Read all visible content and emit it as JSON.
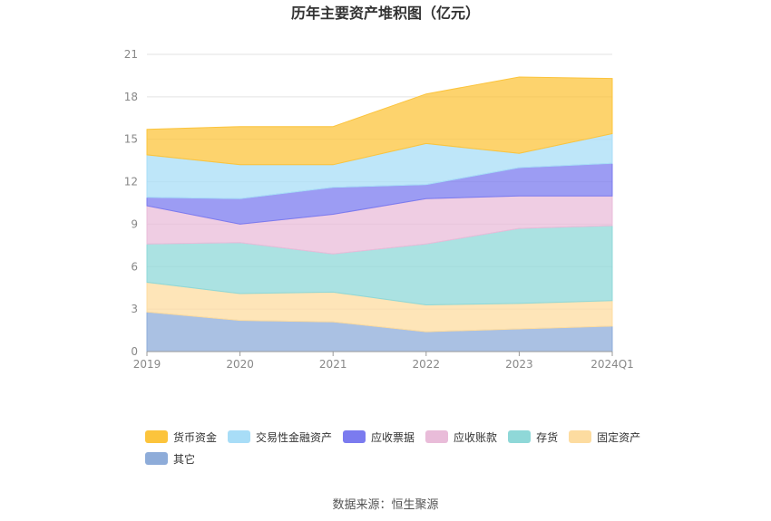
{
  "chart_data": {
    "type": "area",
    "stacked": true,
    "title": "历年主要资产堆积图（亿元）",
    "categories": [
      "2019",
      "2020",
      "2021",
      "2022",
      "2023",
      "2024Q1"
    ],
    "ylim": [
      0,
      21
    ],
    "yticks": [
      0,
      3,
      6,
      9,
      12,
      15,
      18,
      21
    ],
    "grid": true,
    "legend_position": "bottom",
    "series": [
      {
        "name": "其它",
        "color": "#8eacd9",
        "values": [
          2.8,
          2.2,
          2.1,
          1.4,
          1.6,
          1.8
        ]
      },
      {
        "name": "固定资产",
        "color": "#fddca0",
        "values": [
          2.1,
          1.9,
          2.1,
          1.9,
          1.8,
          1.8
        ]
      },
      {
        "name": "存货",
        "color": "#8fd8d8",
        "values": [
          2.7,
          3.6,
          2.7,
          4.3,
          5.3,
          5.3
        ]
      },
      {
        "name": "应收账款",
        "color": "#e9bcd9",
        "values": [
          2.7,
          1.3,
          2.8,
          3.2,
          2.3,
          2.1
        ]
      },
      {
        "name": "应收票据",
        "color": "#7b7bef",
        "values": [
          0.6,
          1.8,
          1.9,
          1.0,
          2.0,
          2.3
        ]
      },
      {
        "name": "交易性金融资产",
        "color": "#a8ddf7",
        "values": [
          3.0,
          2.4,
          1.6,
          2.9,
          1.0,
          2.1
        ]
      },
      {
        "name": "货币资金",
        "color": "#fcc43c",
        "values": [
          1.8,
          2.7,
          2.7,
          3.5,
          5.4,
          3.9
        ]
      }
    ]
  },
  "legend_order": [
    "货币资金",
    "交易性金融资产",
    "应收票据",
    "应收账款",
    "存货",
    "固定资产",
    "其它"
  ],
  "source_text": "数据来源：恒生聚源"
}
